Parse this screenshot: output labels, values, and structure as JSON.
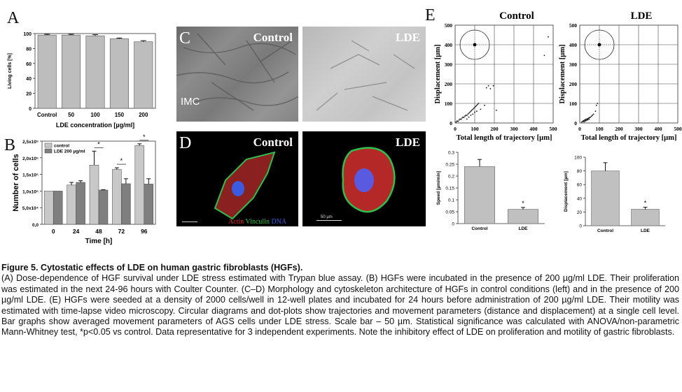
{
  "panels": {
    "a": {
      "label": "A",
      "chart_data": {
        "type": "bar",
        "categories": [
          "Control",
          "50",
          "100",
          "150",
          "200"
        ],
        "values": [
          98,
          98,
          97,
          93,
          89
        ],
        "errors": [
          1,
          1,
          1.5,
          1,
          1.5
        ],
        "xlabel": "LDE concentration [µg/ml]",
        "ylabel": "Living cells [%]",
        "ylim": [
          0,
          100
        ],
        "yticks": [
          "0",
          "20",
          "40",
          "60",
          "80",
          "100"
        ],
        "bar_color": "#bdbdbd"
      }
    },
    "b": {
      "label": "B",
      "chart_data": {
        "type": "bar",
        "categories": [
          "0",
          "24",
          "48",
          "72",
          "96"
        ],
        "series": [
          {
            "name": "control",
            "values": [
              100000,
              118000,
              178000,
              165000,
              237000
            ],
            "errors": [
              0,
              8000,
              42000,
              5000,
              5000
            ],
            "color": "#c8c8c8"
          },
          {
            "name": "LDE 200 µg/ml",
            "values": [
              100000,
              126000,
              103000,
              122000,
              121000
            ],
            "errors": [
              0,
              5000,
              1000,
              15000,
              16000
            ],
            "color": "#7f7f7f"
          }
        ],
        "significance": [
          {
            "category": "48",
            "marker": "*"
          },
          {
            "category": "72",
            "marker": "*"
          },
          {
            "category": "96",
            "marker": "*"
          }
        ],
        "xlabel": "Time [h]",
        "ylabel": "Number of cells",
        "ylim": [
          0,
          250000
        ],
        "yticks": [
          "0,0",
          "5,0x10⁴",
          "1,0x10⁵",
          "1,5x10⁵",
          "2,0x10⁵",
          "2,5x10⁵"
        ],
        "legend_placement": "top-left"
      }
    },
    "c": {
      "label": "C",
      "control_title": "Control",
      "lde_title": "LDE",
      "imc_label": "IMC"
    },
    "d": {
      "label": "D",
      "control_title": "Control",
      "lde_title": "LDE",
      "stain_actin": "Actin",
      "stain_vinculin": "Vinculin",
      "stain_dna": "DNA",
      "scale_bar_label": "50 µm",
      "stain_colors": {
        "actin": "#e03030",
        "vinculin": "#2fbf4a",
        "dna": "#3a5be0"
      }
    },
    "e": {
      "label": "E",
      "scatter_control": {
        "title": "Control",
        "chart_data": {
          "type": "scatter",
          "xlabel": "Total length of trajectory [µm]",
          "ylabel": "Displacement [µm]",
          "xlim": [
            0,
            500
          ],
          "ylim": [
            0,
            500
          ],
          "xticks": [
            "0",
            "100",
            "200",
            "300",
            "400",
            "500"
          ],
          "yticks": [
            "0",
            "100",
            "200",
            "300",
            "400",
            "500"
          ],
          "points": [
            [
              5,
              5
            ],
            [
              10,
              10
            ],
            [
              15,
              8
            ],
            [
              20,
              15
            ],
            [
              25,
              20
            ],
            [
              30,
              18
            ],
            [
              35,
              25
            ],
            [
              40,
              30
            ],
            [
              45,
              28
            ],
            [
              50,
              35
            ],
            [
              55,
              40
            ],
            [
              60,
              38
            ],
            [
              65,
              45
            ],
            [
              70,
              50
            ],
            [
              75,
              55
            ],
            [
              80,
              60
            ],
            [
              85,
              65
            ],
            [
              90,
              70
            ],
            [
              95,
              75
            ],
            [
              100,
              80
            ],
            [
              105,
              85
            ],
            [
              110,
              90
            ],
            [
              115,
              95
            ],
            [
              120,
              100
            ],
            [
              60,
              20
            ],
            [
              70,
              30
            ],
            [
              80,
              40
            ],
            [
              90,
              45
            ],
            [
              100,
              55
            ],
            [
              110,
              60
            ],
            [
              130,
              70
            ],
            [
              150,
              90
            ],
            [
              160,
              180
            ],
            [
              170,
              190
            ],
            [
              180,
              175
            ],
            [
              195,
              190
            ],
            [
              210,
              65
            ],
            [
              455,
              345
            ],
            [
              475,
              440
            ]
          ]
        }
      },
      "scatter_lde": {
        "title": "LDE",
        "chart_data": {
          "type": "scatter",
          "xlabel": "Total length of trajectory [µm]",
          "ylabel": "Displacement [µm]",
          "xlim": [
            0,
            500
          ],
          "ylim": [
            0,
            500
          ],
          "xticks": [
            "0",
            "100",
            "200",
            "300",
            "400",
            "500"
          ],
          "yticks": [
            "0",
            "100",
            "200",
            "300",
            "400",
            "500"
          ],
          "points": [
            [
              10,
              5
            ],
            [
              15,
              8
            ],
            [
              18,
              10
            ],
            [
              20,
              12
            ],
            [
              22,
              6
            ],
            [
              25,
              15
            ],
            [
              28,
              10
            ],
            [
              30,
              18
            ],
            [
              32,
              12
            ],
            [
              35,
              20
            ],
            [
              38,
              15
            ],
            [
              40,
              22
            ],
            [
              42,
              18
            ],
            [
              45,
              25
            ],
            [
              48,
              20
            ],
            [
              50,
              28
            ],
            [
              55,
              30
            ],
            [
              60,
              35
            ],
            [
              65,
              40
            ],
            [
              70,
              45
            ],
            [
              80,
              60
            ],
            [
              85,
              90
            ],
            [
              90,
              100
            ]
          ]
        }
      },
      "speed_bar": {
        "chart_data": {
          "type": "bar",
          "categories": [
            "Control",
            "LDE"
          ],
          "values": [
            0.24,
            0.06
          ],
          "errors": [
            0.03,
            0.008
          ],
          "significance": [
            {
              "category": "LDE",
              "marker": "*"
            }
          ],
          "ylabel": "Speed [µm/min]",
          "ylim": [
            0,
            0.3
          ],
          "yticks": [
            "0",
            "0.05",
            "0.1",
            "0.15",
            "0.2",
            "0.25",
            "0.3"
          ],
          "bar_color": "#c0c0c0"
        }
      },
      "displacement_bar": {
        "chart_data": {
          "type": "bar",
          "categories": [
            "Control",
            "LDE"
          ],
          "values": [
            80,
            24
          ],
          "errors": [
            12,
            3
          ],
          "significance": [
            {
              "category": "LDE",
              "marker": "*"
            }
          ],
          "ylabel": "Displacement [µm]",
          "ylim": [
            0,
            100
          ],
          "yticks": [
            "0",
            "20",
            "40",
            "60",
            "80",
            "100"
          ],
          "bar_color": "#c0c0c0"
        }
      }
    }
  },
  "caption": {
    "title": "Figure 5. Cytostatic effects of LDE on human gastric fibroblasts (HGFs).",
    "body": "(A) Dose-dependence of HGF survival under LDE stress estimated with Trypan blue assay. (B) HGFs were incubated in the presence of 200 µg/ml LDE. Their proliferation was estimated in the next 24-96 hours with Coulter Counter. (C–D) Morphology and cytoskeleton architecture of HGFs in control conditions (left) and in the presence of 200 µg/ml LDE. (E) HGFs were seeded at a density of 2000 cells/well in 12-well plates and incubated for 24 hours before administration of 200 µg/ml LDE. Their motility was estimated with time-lapse video microscopy. Circular diagrams and dot-plots show trajectories and movement parameters (distance and displacement) at a single cell level. Bar graphs show averaged movement parameters of AGS cells under LDE stress. Scale bar – 50 µm. Statistical significance was calculated with ANOVA/non-parametric Mann-Whitney test, *p<0.05 vs control. Data representative for 3 independent experiments. Note the inhibitory effect of LDE on proliferation and motility of gastric fibroblasts."
  }
}
